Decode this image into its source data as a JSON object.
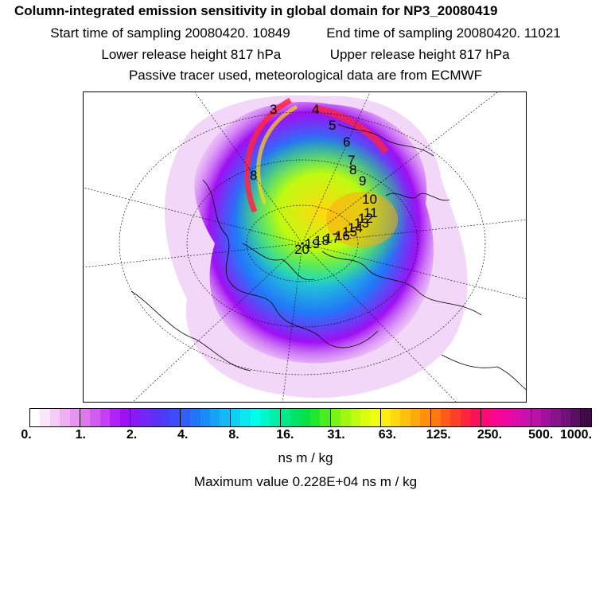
{
  "header": {
    "title": "Column-integrated emission sensitivity in global domain for NP3_20080419",
    "start_label": "Start time of sampling 20080420. 10849",
    "end_label": "End time of sampling 20080420. 11021",
    "lower_label": "Lower release height  817 hPa",
    "upper_label": "Upper release height  817 hPa",
    "tracer_label": "Passive tracer used, meteorological data are from ECMWF"
  },
  "map": {
    "trajectory_labels": [
      "3",
      "4",
      "5",
      "6",
      "7",
      "8",
      "9",
      "10",
      "11",
      "12",
      "13",
      "14",
      "15",
      "16",
      "17",
      "18",
      "19",
      "20",
      "8"
    ]
  },
  "colorbar": {
    "ticks": [
      "0.",
      "1.",
      "2.",
      "4.",
      "8.",
      "16.",
      "31.",
      "63.",
      "125.",
      "250.",
      "500.",
      "1000."
    ],
    "colors": [
      "#ffffff",
      "#fbe5fb",
      "#f5cbf7",
      "#efb0f3",
      "#e794f0",
      "#df78ee",
      "#d35cf0",
      "#c440f2",
      "#b022f5",
      "#9f10f3",
      "#8a1af5",
      "#7428f5",
      "#5c30f5",
      "#4a3cf7",
      "#3c4cf8",
      "#2f60fa",
      "#2277f9",
      "#1a8cf8",
      "#17a2f6",
      "#14b8f4",
      "#10d0f2",
      "#0ce8f0",
      "#00ffe8",
      "#00f8c8",
      "#00f0a8",
      "#00e888",
      "#00e268",
      "#08e248",
      "#20e830",
      "#48ee20",
      "#78f418",
      "#a0f810",
      "#c0fa10",
      "#dcfc10",
      "#f0fc10",
      "#ffee10",
      "#ffd810",
      "#ffc010",
      "#ffa810",
      "#ff9010",
      "#ff7810",
      "#ff5c18",
      "#ff4028",
      "#ff2440",
      "#ff105a",
      "#ff0878",
      "#f80890",
      "#ee08a0",
      "#de0ca8",
      "#cc10b0",
      "#b812a8",
      "#a0129c",
      "#88128c",
      "#70127a",
      "#581060",
      "#400a48"
    ],
    "units": "ns m / kg",
    "max_value": "Maximum value  0.228E+04 ns m / kg"
  }
}
